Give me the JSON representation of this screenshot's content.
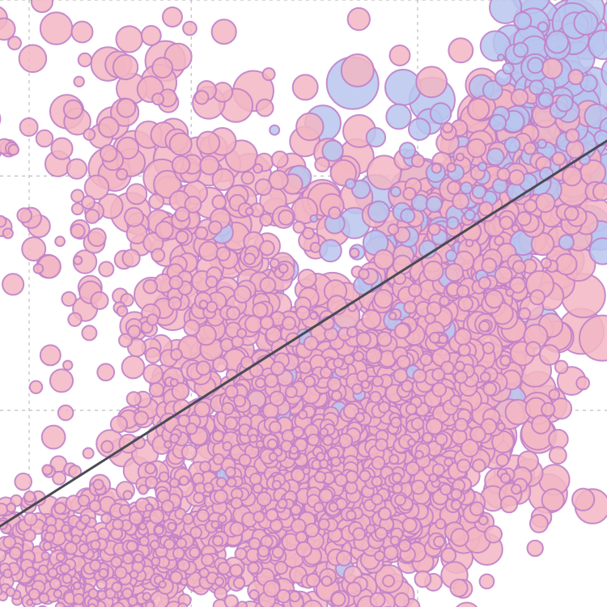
{
  "chart_data": {
    "type": "scatter",
    "title": "",
    "xlabel": "",
    "ylabel": "",
    "xlim": [
      0,
      100
    ],
    "ylim": [
      0,
      100
    ],
    "grid": true,
    "grid_x": [
      4.8,
      31.5,
      68.8
    ],
    "grid_y": [
      32.4,
      71,
      100
    ],
    "legend": "none",
    "marker_edge_color": "#c182c9",
    "series": [
      {
        "color": "#f2b6c3",
        "density_clusters": [
          {
            "cx": 55,
            "cy": 25,
            "sx": 14,
            "sy": 11,
            "n": 1500
          },
          {
            "cx": 20,
            "cy": 8,
            "sx": 13,
            "sy": 6,
            "n": 550
          },
          {
            "cx": 75,
            "cy": 48,
            "sx": 9,
            "sy": 12,
            "n": 320
          },
          {
            "cx": 85,
            "cy": 70,
            "sx": 7,
            "sy": 8,
            "n": 160
          },
          {
            "cx": 40,
            "cy": 48,
            "sx": 11,
            "sy": 14,
            "n": 220
          },
          {
            "cx": 25,
            "cy": 70,
            "sx": 15,
            "sy": 16,
            "n": 180
          }
        ],
        "points": [
          {
            "x": 88.7,
            "y": 28.3,
            "size": 44
          },
          {
            "x": 58.7,
            "y": 67.5,
            "size": 40
          },
          {
            "x": 56.9,
            "y": 71.9,
            "size": 36
          },
          {
            "x": 41.2,
            "y": 71.2,
            "size": 52
          },
          {
            "x": 99.2,
            "y": 44.3,
            "size": 56
          },
          {
            "x": 96.1,
            "y": 51.3,
            "size": 54
          },
          {
            "x": 76.3,
            "y": 45.6,
            "size": 40
          },
          {
            "x": 80.8,
            "y": 68.7,
            "size": 50
          },
          {
            "x": 59.2,
            "y": 78.4,
            "size": 40
          },
          {
            "x": 58.9,
            "y": 88.4,
            "size": 40
          },
          {
            "x": 75.9,
            "y": 91.7,
            "size": 30
          },
          {
            "x": 2.4,
            "y": 92.9,
            "size": 16
          },
          {
            "x": 28.4,
            "y": 97.2,
            "size": 24
          }
        ]
      },
      {
        "color": "#b9c5ef",
        "density_clusters": [
          {
            "cx": 90,
            "cy": 80,
            "sx": 7,
            "sy": 10,
            "n": 140
          },
          {
            "cx": 70,
            "cy": 65,
            "sx": 8,
            "sy": 8,
            "n": 60
          },
          {
            "cx": 55,
            "cy": 45,
            "sx": 16,
            "sy": 18,
            "n": 30
          }
        ],
        "points": [
          {
            "x": 58.1,
            "y": 86.3,
            "size": 64
          },
          {
            "x": 94.4,
            "y": 95.5,
            "size": 70
          },
          {
            "x": 97.3,
            "y": 72,
            "size": 64
          },
          {
            "x": 71.2,
            "y": 83.5,
            "size": 56
          },
          {
            "x": 53.2,
            "y": 79.7,
            "size": 44
          },
          {
            "x": 68.7,
            "y": 67.9,
            "size": 70
          },
          {
            "x": 66.4,
            "y": 85.6,
            "size": 44
          },
          {
            "x": 89.5,
            "y": 46.8,
            "size": 40
          },
          {
            "x": 87.3,
            "y": 92.3,
            "size": 50
          },
          {
            "x": 85.3,
            "y": 58.4,
            "size": 36
          }
        ]
      }
    ],
    "trendline": {
      "x": [
        0,
        100
      ],
      "y": [
        13.3,
        76.8
      ]
    }
  }
}
